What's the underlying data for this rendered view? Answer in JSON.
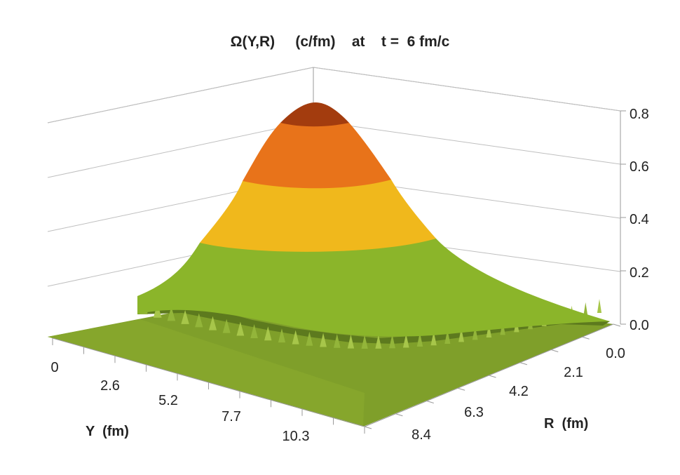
{
  "chart_data": {
    "type": "surface3d",
    "title": "Ω(Y,R)     (c/fm)    at    t =  6 fm/c",
    "xlabel": "Y  (fm)",
    "ylabel": "R  (fm)",
    "zlabel": "",
    "x_ticks": [
      "0",
      "2.6",
      "5.2",
      "7.7",
      "10.3"
    ],
    "y_ticks": [
      "0.0",
      "2.1",
      "4.2",
      "6.3",
      "8.4"
    ],
    "z_ticks": [
      "0.0",
      "0.2",
      "0.4",
      "0.6",
      "0.8"
    ],
    "zlim": [
      0,
      0.8
    ],
    "peak": {
      "Y": 0,
      "R": 0,
      "value": 0.8
    },
    "bands": [
      {
        "range": [
          0.0,
          0.4
        ],
        "color": "#8bb52a"
      },
      {
        "range": [
          0.4,
          0.6
        ],
        "color": "#f0b81c"
      },
      {
        "range": [
          0.6,
          0.8
        ],
        "color": "#e8731a"
      },
      {
        "range": [
          0.8,
          1.0
        ],
        "color": "#a33c0e"
      }
    ],
    "floor_color": "#7f9f2a",
    "grid": true
  }
}
